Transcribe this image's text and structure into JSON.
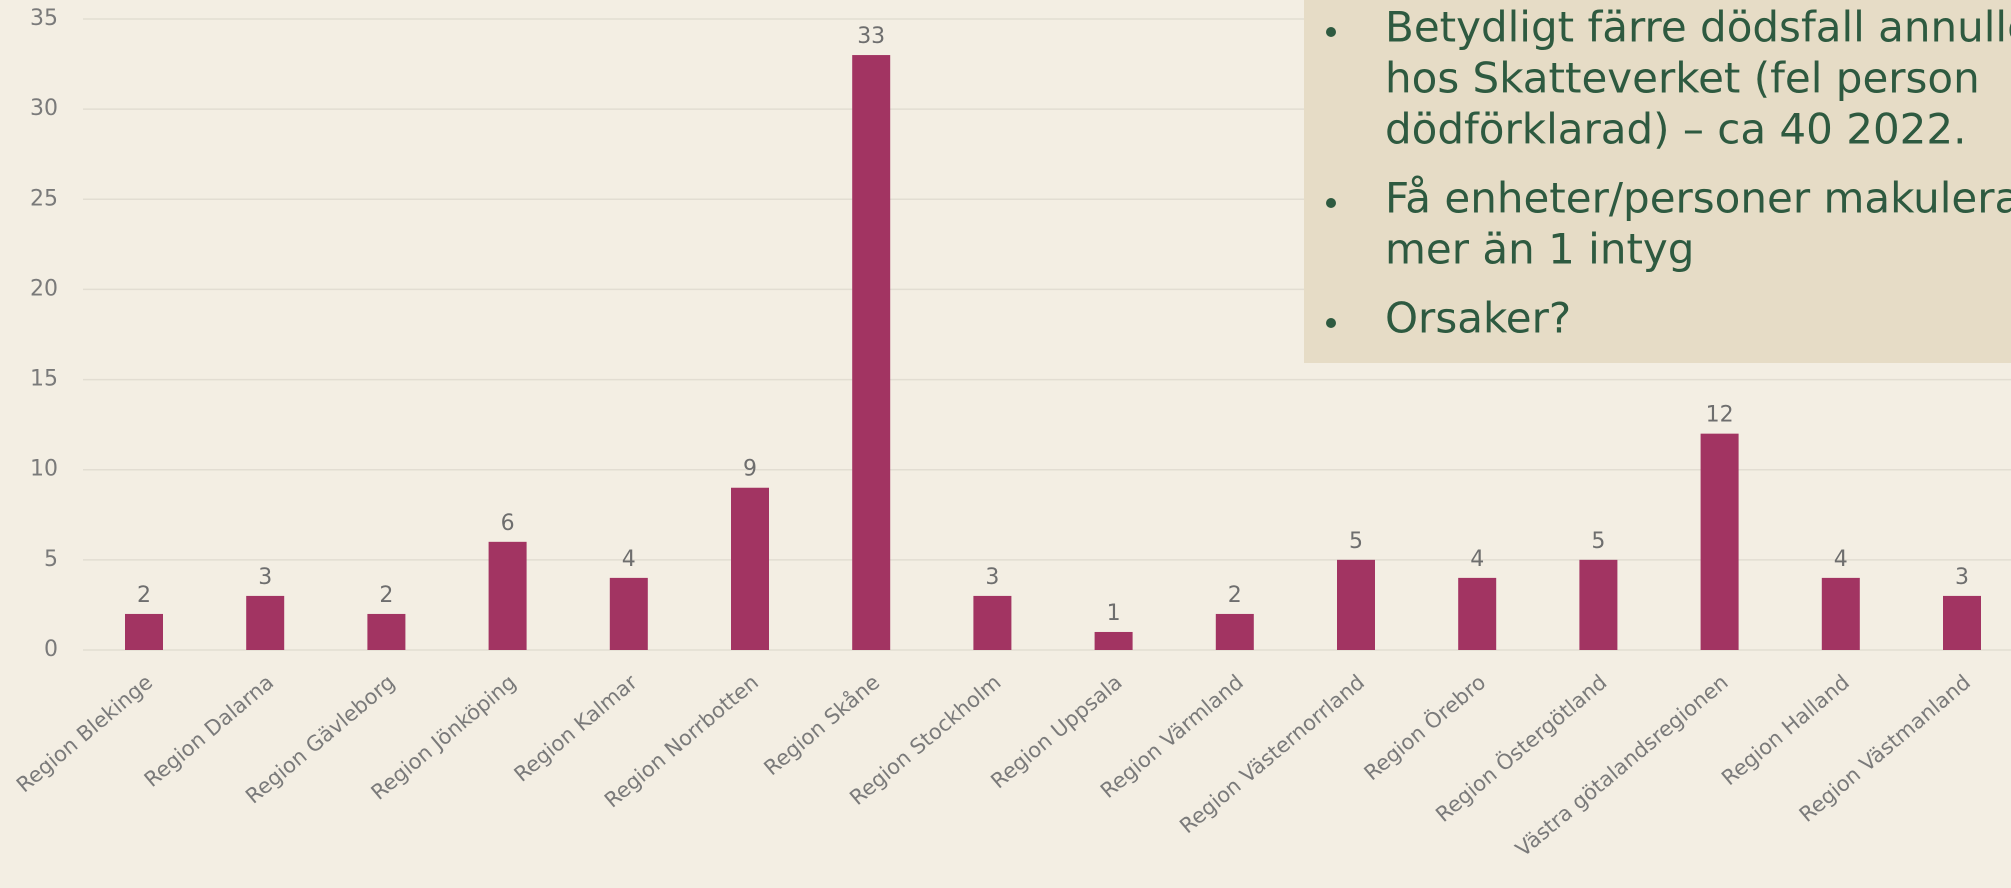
{
  "chart_data": {
    "type": "bar",
    "categories": [
      "Region Blekinge",
      "Region Dalarna",
      "Region Gävleborg",
      "Region Jönköping",
      "Region Kalmar",
      "Region Norrbotten",
      "Region Skåne",
      "Region Stockholm",
      "Region Uppsala",
      "Region Värmland",
      "Region Västernorrland",
      "Region Örebro",
      "Region Östergötland",
      "Västra götalandsregionen",
      "Region Halland",
      "Region Västmanland"
    ],
    "values": [
      2,
      3,
      2,
      6,
      4,
      9,
      33,
      3,
      1,
      2,
      5,
      4,
      5,
      12,
      4,
      3
    ],
    "color": "#a23462",
    "ylim": [
      0,
      35
    ],
    "yticks": [
      0,
      5,
      10,
      15,
      20,
      25,
      30,
      35
    ],
    "grid": true
  },
  "note_box": {
    "bullets": [
      [
        "Betydligt färre dödsfall annullera",
        "hos Skatteverket (fel person",
        "dödförklarad) – ca 40 2022."
      ],
      [
        "Få enheter/personer makulerar",
        "mer än 1 intyg"
      ],
      [
        "Orsaker?"
      ]
    ]
  }
}
